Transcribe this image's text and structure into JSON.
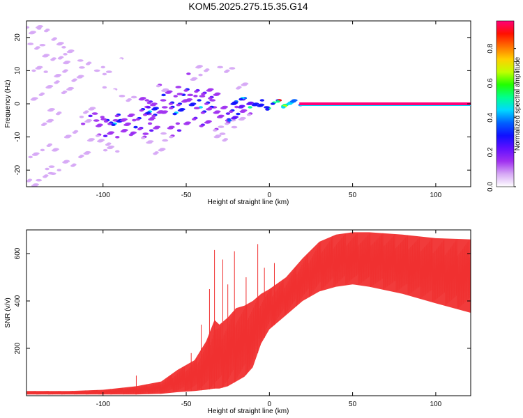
{
  "chart_data": [
    {
      "type": "heatmap",
      "title": "KOM5.2025.275.15.35.G14",
      "xlabel": "Height of straight line (km)",
      "ylabel": "Frequency (Hz)",
      "xlim": [
        -146,
        121
      ],
      "ylim": [
        -25,
        25
      ],
      "xticks": [
        -100,
        -50,
        0,
        50,
        100
      ],
      "xtick_labels": [
        "-100",
        "-50",
        "0",
        "50",
        "100"
      ],
      "yticks": [
        -20,
        -10,
        0,
        10,
        20
      ],
      "ytick_labels": [
        "-20",
        "-10",
        "0",
        "10",
        "20"
      ],
      "colorbar": {
        "label": "Normalized spectral amplitude",
        "range": [
          0,
          0.96
        ],
        "ticks": [
          0.0,
          0.2,
          0.4,
          0.6,
          0.8
        ],
        "tick_labels": [
          "0.0",
          "0.2",
          "0.4",
          "0.6",
          "0.8"
        ],
        "colors": [
          "#ffffff",
          "#d6a8f5",
          "#a030f0",
          "#6010ff",
          "#1010ff",
          "#0060ff",
          "#00d8ff",
          "#00ff90",
          "#20ff00",
          "#c0ff00",
          "#ffd000",
          "#ff7000",
          "#ff1000",
          "#ff0078"
        ]
      },
      "steady_line": {
        "x_start": 18,
        "x_end": 121,
        "freq": 0,
        "amplitude": 0.95
      },
      "blobs": [
        {
          "x": -142,
          "f": 22,
          "a": 0.1
        },
        {
          "x": -136,
          "f": 23,
          "a": 0.1
        },
        {
          "x": -140,
          "f": 17,
          "a": 0.1
        },
        {
          "x": -128,
          "f": 19,
          "a": 0.1
        },
        {
          "x": -120,
          "f": 16,
          "a": 0.08
        },
        {
          "x": -133,
          "f": 14,
          "a": 0.1
        },
        {
          "x": -110,
          "f": 12,
          "a": 0.08
        },
        {
          "x": -125,
          "f": 13,
          "a": 0.1
        },
        {
          "x": -115,
          "f": 8,
          "a": 0.08
        },
        {
          "x": -138,
          "f": 10,
          "a": 0.1
        },
        {
          "x": -130,
          "f": 6,
          "a": 0.08
        },
        {
          "x": -100,
          "f": 6,
          "a": 0.06
        },
        {
          "x": -122,
          "f": 4,
          "a": 0.08
        },
        {
          "x": -90,
          "f": 4,
          "a": 0.06
        },
        {
          "x": -140,
          "f": 2,
          "a": 0.1
        },
        {
          "x": -128,
          "f": -2,
          "a": 0.1
        },
        {
          "x": -135,
          "f": -6,
          "a": 0.08
        },
        {
          "x": -130,
          "f": -13,
          "a": 0.1
        },
        {
          "x": -140,
          "f": -15,
          "a": 0.08
        },
        {
          "x": -120,
          "f": -18,
          "a": 0.08
        },
        {
          "x": -135,
          "f": -22,
          "a": 0.08
        },
        {
          "x": -143,
          "f": -24,
          "a": 0.08
        },
        {
          "x": -110,
          "f": -15,
          "a": 0.08
        },
        {
          "x": -100,
          "f": -12,
          "a": 0.08
        },
        {
          "x": -118,
          "f": -9,
          "a": 0.1
        },
        {
          "x": -112,
          "f": -5,
          "a": 0.12
        },
        {
          "x": -108,
          "f": -2,
          "a": 0.1
        },
        {
          "x": -104,
          "f": -4,
          "a": 0.25
        },
        {
          "x": -100,
          "f": -6,
          "a": 0.3
        },
        {
          "x": -96,
          "f": -5,
          "a": 0.3
        },
        {
          "x": -92,
          "f": -6,
          "a": 0.45
        },
        {
          "x": -88,
          "f": -4,
          "a": 0.3
        },
        {
          "x": -84,
          "f": -6,
          "a": 0.3
        },
        {
          "x": -80,
          "f": -4,
          "a": 0.3
        },
        {
          "x": -76,
          "f": -2,
          "a": 0.3
        },
        {
          "x": -72,
          "f": -4,
          "a": 0.3
        },
        {
          "x": -95,
          "f": -9,
          "a": 0.2
        },
        {
          "x": -85,
          "f": -9,
          "a": 0.2
        },
        {
          "x": -78,
          "f": -8,
          "a": 0.25
        },
        {
          "x": -70,
          "f": -7,
          "a": 0.25
        },
        {
          "x": -66,
          "f": -3,
          "a": 0.3
        },
        {
          "x": -62,
          "f": 0,
          "a": 0.3
        },
        {
          "x": -60,
          "f": -2,
          "a": 0.3
        },
        {
          "x": -56,
          "f": -2,
          "a": 0.45
        },
        {
          "x": -52,
          "f": 0,
          "a": 0.3
        },
        {
          "x": -48,
          "f": 2,
          "a": 0.3
        },
        {
          "x": -44,
          "f": 0,
          "a": 0.45
        },
        {
          "x": -40,
          "f": -2,
          "a": 0.3
        },
        {
          "x": -36,
          "f": 0,
          "a": 0.3
        },
        {
          "x": -32,
          "f": -2,
          "a": 0.3
        },
        {
          "x": -28,
          "f": -4,
          "a": 0.3
        },
        {
          "x": -24,
          "f": -2,
          "a": 0.3
        },
        {
          "x": -20,
          "f": 0,
          "a": 0.35
        },
        {
          "x": -17,
          "f": -2,
          "a": 0.3
        },
        {
          "x": -60,
          "f": 3,
          "a": 0.3
        },
        {
          "x": -52,
          "f": 4,
          "a": 0.3
        },
        {
          "x": -44,
          "f": 3,
          "a": 0.25
        },
        {
          "x": -38,
          "f": 4,
          "a": 0.2
        },
        {
          "x": -32,
          "f": 2,
          "a": 0.2
        },
        {
          "x": -48,
          "f": -5,
          "a": 0.25
        },
        {
          "x": -56,
          "f": -7,
          "a": 0.2
        },
        {
          "x": -40,
          "f": -6,
          "a": 0.2
        },
        {
          "x": -30,
          "f": -8,
          "a": 0.15
        },
        {
          "x": -45,
          "f": 8,
          "a": 0.15
        },
        {
          "x": -40,
          "f": 11,
          "a": 0.1
        },
        {
          "x": -26,
          "f": 10,
          "a": 0.1
        },
        {
          "x": -65,
          "f": 5,
          "a": 0.15
        },
        {
          "x": -70,
          "f": 0,
          "a": 0.2
        },
        {
          "x": -75,
          "f": 1,
          "a": 0.2
        },
        {
          "x": -60,
          "f": -10,
          "a": 0.15
        },
        {
          "x": -75,
          "f": -11,
          "a": 0.12
        },
        {
          "x": -66,
          "f": -14,
          "a": 0.1
        },
        {
          "x": -95,
          "f": -14,
          "a": 0.1
        },
        {
          "x": -105,
          "f": -10,
          "a": 0.12
        },
        {
          "x": -100,
          "f": 10,
          "a": 0.08
        },
        {
          "x": -88,
          "f": 14,
          "a": 0.06
        },
        {
          "x": -22,
          "f": -6,
          "a": 0.15
        },
        {
          "x": -15,
          "f": -4,
          "a": 0.12
        },
        {
          "x": -28,
          "f": -10,
          "a": 0.1
        },
        {
          "x": -18,
          "f": 5,
          "a": 0.1
        },
        {
          "x": -13,
          "f": 1,
          "a": 0.35
        },
        {
          "x": -8,
          "f": 0,
          "a": 0.5
        },
        {
          "x": -3,
          "f": -1,
          "a": 0.5
        },
        {
          "x": 2,
          "f": 0,
          "a": 0.55
        },
        {
          "x": 7,
          "f": 0,
          "a": 0.9
        },
        {
          "x": 12,
          "f": 0,
          "a": 0.7
        },
        {
          "x": 16,
          "f": 0,
          "a": 0.6
        },
        {
          "x": -18,
          "f": 1,
          "a": 0.45
        },
        {
          "x": -24,
          "f": -4,
          "a": 0.4
        },
        {
          "x": -70,
          "f": -2,
          "a": 0.45
        },
        {
          "x": -130,
          "f": -20,
          "a": 0.08
        },
        {
          "x": -125,
          "f": 9,
          "a": 0.1
        },
        {
          "x": -85,
          "f": 2,
          "a": 0.1
        }
      ]
    },
    {
      "type": "line",
      "xlabel": "Height of straight line (km)",
      "ylabel": "SNR (v/v)",
      "xlim": [
        -146,
        121
      ],
      "ylim": [
        0,
        700
      ],
      "xticks": [
        -100,
        -50,
        0,
        50,
        100
      ],
      "xtick_labels": [
        "-100",
        "-50",
        "0",
        "50",
        "100"
      ],
      "yticks": [
        200,
        400,
        600
      ],
      "ytick_labels": [
        "200",
        "400",
        "600"
      ],
      "color": "#f03030",
      "envelope": {
        "x": [
          -146,
          -120,
          -100,
          -80,
          -65,
          -55,
          -45,
          -38,
          -33,
          -30,
          -25,
          -20,
          -15,
          -10,
          -5,
          0,
          10,
          20,
          30,
          40,
          50,
          60,
          80,
          100,
          121
        ],
        "upper": [
          20,
          20,
          25,
          40,
          60,
          110,
          150,
          230,
          320,
          300,
          330,
          370,
          380,
          400,
          430,
          450,
          500,
          580,
          650,
          680,
          690,
          690,
          680,
          665,
          660
        ],
        "lower": [
          5,
          5,
          5,
          5,
          8,
          15,
          20,
          25,
          30,
          30,
          40,
          60,
          80,
          120,
          220,
          280,
          340,
          400,
          440,
          460,
          470,
          460,
          430,
          390,
          350
        ]
      },
      "spikes": [
        {
          "x": -33,
          "y": 615
        },
        {
          "x": -28,
          "y": 575
        },
        {
          "x": -21,
          "y": 610
        },
        {
          "x": -7,
          "y": 640
        },
        {
          "x": -36,
          "y": 450
        },
        {
          "x": -41,
          "y": 300
        },
        {
          "x": -47,
          "y": 180
        },
        {
          "x": -80,
          "y": 85
        },
        {
          "x": -25,
          "y": 470
        },
        {
          "x": -14,
          "y": 500
        },
        {
          "x": -3,
          "y": 540
        },
        {
          "x": 3,
          "y": 560
        }
      ]
    }
  ]
}
